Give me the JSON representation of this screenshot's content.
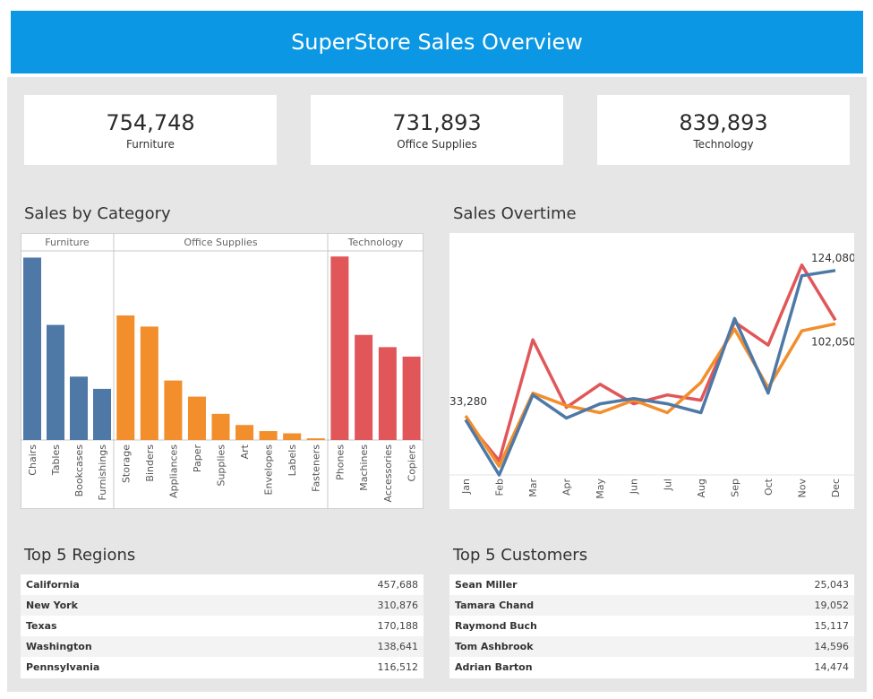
{
  "header": {
    "title": "SuperStore Sales Overview"
  },
  "kpis": [
    {
      "value": "754,748",
      "label": "Furniture"
    },
    {
      "value": "731,893",
      "label": "Office Supplies"
    },
    {
      "value": "839,893",
      "label": "Technology"
    }
  ],
  "sections": {
    "category_title": "Sales by Category",
    "overtime_title": "Sales Overtime",
    "regions_title": "Top 5 Regions",
    "customers_title": "Top 5 Customers"
  },
  "regions": [
    {
      "name": "California",
      "value": "457,688"
    },
    {
      "name": "New York",
      "value": "310,876"
    },
    {
      "name": "Texas",
      "value": "170,188"
    },
    {
      "name": "Washington",
      "value": "138,641"
    },
    {
      "name": "Pennsylvania",
      "value": "116,512"
    }
  ],
  "customers": [
    {
      "name": "Sean Miller",
      "value": "25,043"
    },
    {
      "name": "Tamara Chand",
      "value": "19,052"
    },
    {
      "name": "Raymond Buch",
      "value": "15,117"
    },
    {
      "name": "Tom Ashbrook",
      "value": "14,596"
    },
    {
      "name": "Adrian Barton",
      "value": "14,474"
    }
  ],
  "colors": {
    "header": "#0b97e3",
    "furniture": "#4e79a7",
    "office_supplies": "#f28e2b",
    "technology": "#e15759"
  },
  "chart_data": [
    {
      "type": "bar",
      "title": "Sales by Category",
      "ylim": [
        0,
        340000
      ],
      "groups": [
        {
          "name": "Furniture",
          "color": "#4e79a7",
          "categories": [
            "Chairs",
            "Tables",
            "Bookcases",
            "Furnishings"
          ],
          "values": [
            328000,
            207000,
            114000,
            92000
          ]
        },
        {
          "name": "Office Supplies",
          "color": "#f28e2b",
          "categories": [
            "Storage",
            "Binders",
            "Appliances",
            "Paper",
            "Supplies",
            "Art",
            "Envelopes",
            "Labels",
            "Fasteners"
          ],
          "values": [
            224000,
            204000,
            107000,
            78000,
            47000,
            27000,
            16000,
            12000,
            3000
          ]
        },
        {
          "name": "Technology",
          "color": "#e15759",
          "categories": [
            "Phones",
            "Machines",
            "Accessories",
            "Copiers"
          ],
          "values": [
            330000,
            189000,
            167000,
            150000
          ]
        }
      ]
    },
    {
      "type": "line",
      "title": "Sales Overtime",
      "x": [
        "Jan",
        "Feb",
        "Mar",
        "Apr",
        "May",
        "Jun",
        "Jul",
        "Aug",
        "Sep",
        "Oct",
        "Nov",
        "Dec"
      ],
      "ylim": [
        0,
        130000
      ],
      "series": [
        {
          "name": "red",
          "color": "#e15759",
          "values": [
            31000,
            8000,
            76000,
            38000,
            51000,
            40000,
            45000,
            42000,
            86000,
            73000,
            118000,
            87000
          ]
        },
        {
          "name": "orange",
          "color": "#f28e2b",
          "values": [
            33280,
            5000,
            46000,
            39000,
            35000,
            42000,
            35000,
            52000,
            82000,
            49000,
            81000,
            85000
          ]
        },
        {
          "name": "blue",
          "color": "#4e79a7",
          "values": [
            31000,
            0,
            45000,
            32000,
            40000,
            43000,
            40000,
            35000,
            88000,
            46000,
            112000,
            115000
          ]
        }
      ],
      "annotations": [
        "33,280",
        "124,080",
        "102,050"
      ]
    }
  ]
}
